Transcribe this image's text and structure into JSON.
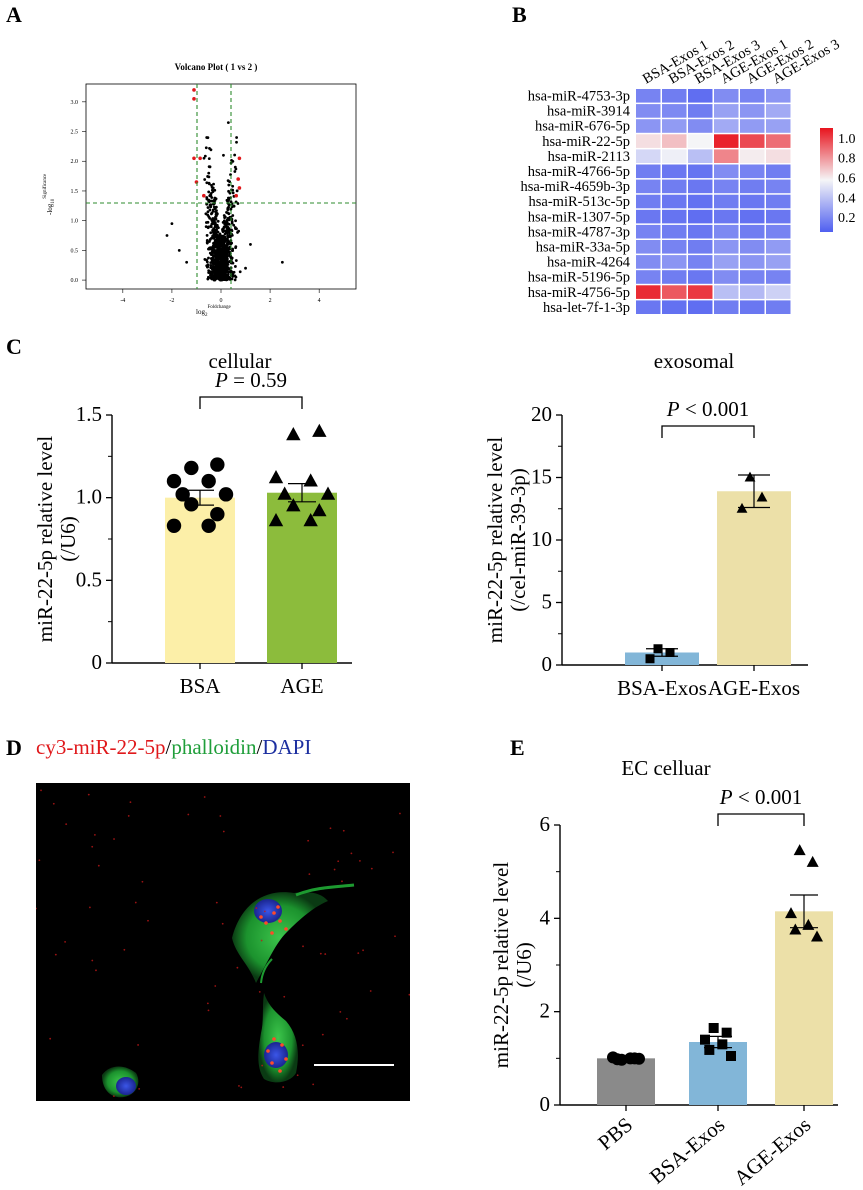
{
  "panels": {
    "a": "A",
    "b": "B",
    "c": "C",
    "d": "D",
    "e": "E"
  },
  "volcano": {
    "title": "Volcano Plot ( 1 vs 2 )",
    "xlabel_main": "log",
    "xlabel_sub": "2",
    "xlabel_sup": "Foldchange",
    "ylabel_main": "-log",
    "ylabel_sub": "10",
    "ylabel_sup": "Significance",
    "xticks": [
      "-4",
      "-2",
      "0",
      "2",
      "4"
    ],
    "yticks": [
      "0.0",
      "0.5",
      "1.0",
      "1.5",
      "2.0",
      "2.5",
      "3.0"
    ],
    "colors": {
      "ns": "#000000",
      "sig": "#e0181b",
      "threshold": "#2e8b2e"
    }
  },
  "heatmap": {
    "columns": [
      "BSA-Exos 1",
      "BSA-Exos 2",
      "BSA-Exos 3",
      "AGE-Exos 1",
      "AGE-Exos 2",
      "AGE-Exos 3"
    ],
    "rows": [
      "hsa-miR-4753-3p",
      "hsa-miR-3914",
      "hsa-miR-676-5p",
      "hsa-miR-22-5p",
      "hsa-miR-2113",
      "hsa-miR-4766-5p",
      "hsa-miR-4659b-3p",
      "hsa-miR-513c-5p",
      "hsa-miR-1307-5p",
      "hsa-miR-4787-3p",
      "hsa-miR-33a-5p",
      "hsa-miR-4264",
      "hsa-miR-5196-5p",
      "hsa-miR-4756-5p",
      "hsa-let-7f-1-3p"
    ],
    "values": [
      [
        0.12,
        0.1,
        0.05,
        0.15,
        0.12,
        0.18
      ],
      [
        0.15,
        0.14,
        0.1,
        0.22,
        0.18,
        0.25
      ],
      [
        0.18,
        0.2,
        0.15,
        0.25,
        0.2,
        0.22
      ],
      [
        0.55,
        0.62,
        0.5,
        0.97,
        0.88,
        0.8
      ],
      [
        0.4,
        0.48,
        0.32,
        0.75,
        0.52,
        0.55
      ],
      [
        0.1,
        0.08,
        0.07,
        0.15,
        0.12,
        0.1
      ],
      [
        0.12,
        0.1,
        0.08,
        0.12,
        0.1,
        0.12
      ],
      [
        0.1,
        0.08,
        0.06,
        0.1,
        0.08,
        0.1
      ],
      [
        0.08,
        0.07,
        0.05,
        0.08,
        0.06,
        0.08
      ],
      [
        0.12,
        0.1,
        0.08,
        0.14,
        0.1,
        0.12
      ],
      [
        0.15,
        0.12,
        0.1,
        0.18,
        0.15,
        0.2
      ],
      [
        0.15,
        0.18,
        0.12,
        0.22,
        0.18,
        0.22
      ],
      [
        0.12,
        0.1,
        0.08,
        0.15,
        0.12,
        0.12
      ],
      [
        0.95,
        0.85,
        0.92,
        0.32,
        0.3,
        0.38
      ],
      [
        0.08,
        0.06,
        0.05,
        0.1,
        0.08,
        0.1
      ]
    ],
    "colorbar_ticks": [
      "1.0",
      "0.8",
      "0.6",
      "0.4",
      "0.2"
    ],
    "colors": {
      "low": "#4f5ff0",
      "mid": "#f5f5f7",
      "high": "#e8141e"
    }
  },
  "chart_data": [
    {
      "type": "bar",
      "title": "cellular",
      "ylabel": "miR-22-5p relative level",
      "ylabel2": "(/U6)",
      "categories": [
        "BSA",
        "AGE"
      ],
      "values": [
        1.0,
        1.03
      ],
      "sem": [
        0.045,
        0.055
      ],
      "points": [
        [
          1.18,
          1.2,
          1.1,
          1.1,
          1.02,
          1.02,
          0.96,
          0.9,
          0.83,
          0.83
        ],
        [
          1.38,
          1.4,
          1.12,
          1.1,
          1.02,
          1.02,
          0.95,
          0.92,
          0.86,
          0.86
        ]
      ],
      "markers": [
        "circle",
        "triangle"
      ],
      "ylim": [
        0,
        1.5
      ],
      "yticks": [
        "0",
        "0.5",
        "1.0",
        "1.5"
      ],
      "annotation": "P",
      "annotation_value": " = 0.59",
      "colors": [
        "#fcefa8",
        "#8cbc3c"
      ]
    },
    {
      "type": "bar",
      "title": "exosomal",
      "ylabel": "miR-22-5p relative level",
      "ylabel2": "(/cel-miR-39-3p)",
      "categories": [
        "BSA-Exos",
        "AGE-Exos"
      ],
      "values": [
        1.0,
        13.9
      ],
      "sem": [
        0.3,
        1.3
      ],
      "points": [
        [
          1.3,
          1.0,
          0.5
        ],
        [
          15.0,
          13.4,
          12.5
        ]
      ],
      "markers": [
        "square",
        "triangle"
      ],
      "ylim": [
        0,
        20
      ],
      "yticks": [
        "0",
        "5",
        "10",
        "15",
        "20"
      ],
      "annotation": "P",
      "annotation_value": " < 0.001",
      "colors": [
        "#82b6d8",
        "#ece0a8"
      ]
    },
    {
      "type": "bar",
      "title": "EC celluar",
      "ylabel": "miR-22-5p relative level",
      "ylabel2": "(/U6)",
      "categories": [
        "PBS",
        "BSA-Exos",
        "AGE-Exos"
      ],
      "values": [
        1.0,
        1.35,
        4.15
      ],
      "sem": [
        0.02,
        0.12,
        0.35
      ],
      "points": [
        [
          0.97,
          1.0,
          1.02,
          1.0,
          0.98,
          0.99
        ],
        [
          1.65,
          1.55,
          1.4,
          1.3,
          1.18,
          1.05
        ],
        [
          5.45,
          5.2,
          4.1,
          3.85,
          3.75,
          3.6
        ]
      ],
      "markers": [
        "circle",
        "square",
        "triangle"
      ],
      "ylim": [
        0,
        6
      ],
      "yticks": [
        "0",
        "2",
        "4",
        "6"
      ],
      "annotation": "P",
      "annotation_value": " < 0.001",
      "colors": [
        "#8a8a8a",
        "#82b6d8",
        "#ece0a8"
      ]
    }
  ],
  "microscopy": {
    "title_part1": "cy3-miR-22-5p",
    "sep1": "/",
    "title_part2": "phalloidin",
    "sep2": "/",
    "title_part3": "DAPI",
    "colors": {
      "red": "#e0181b",
      "green": "#1f9e3a",
      "blue": "#1c2fa0"
    }
  }
}
